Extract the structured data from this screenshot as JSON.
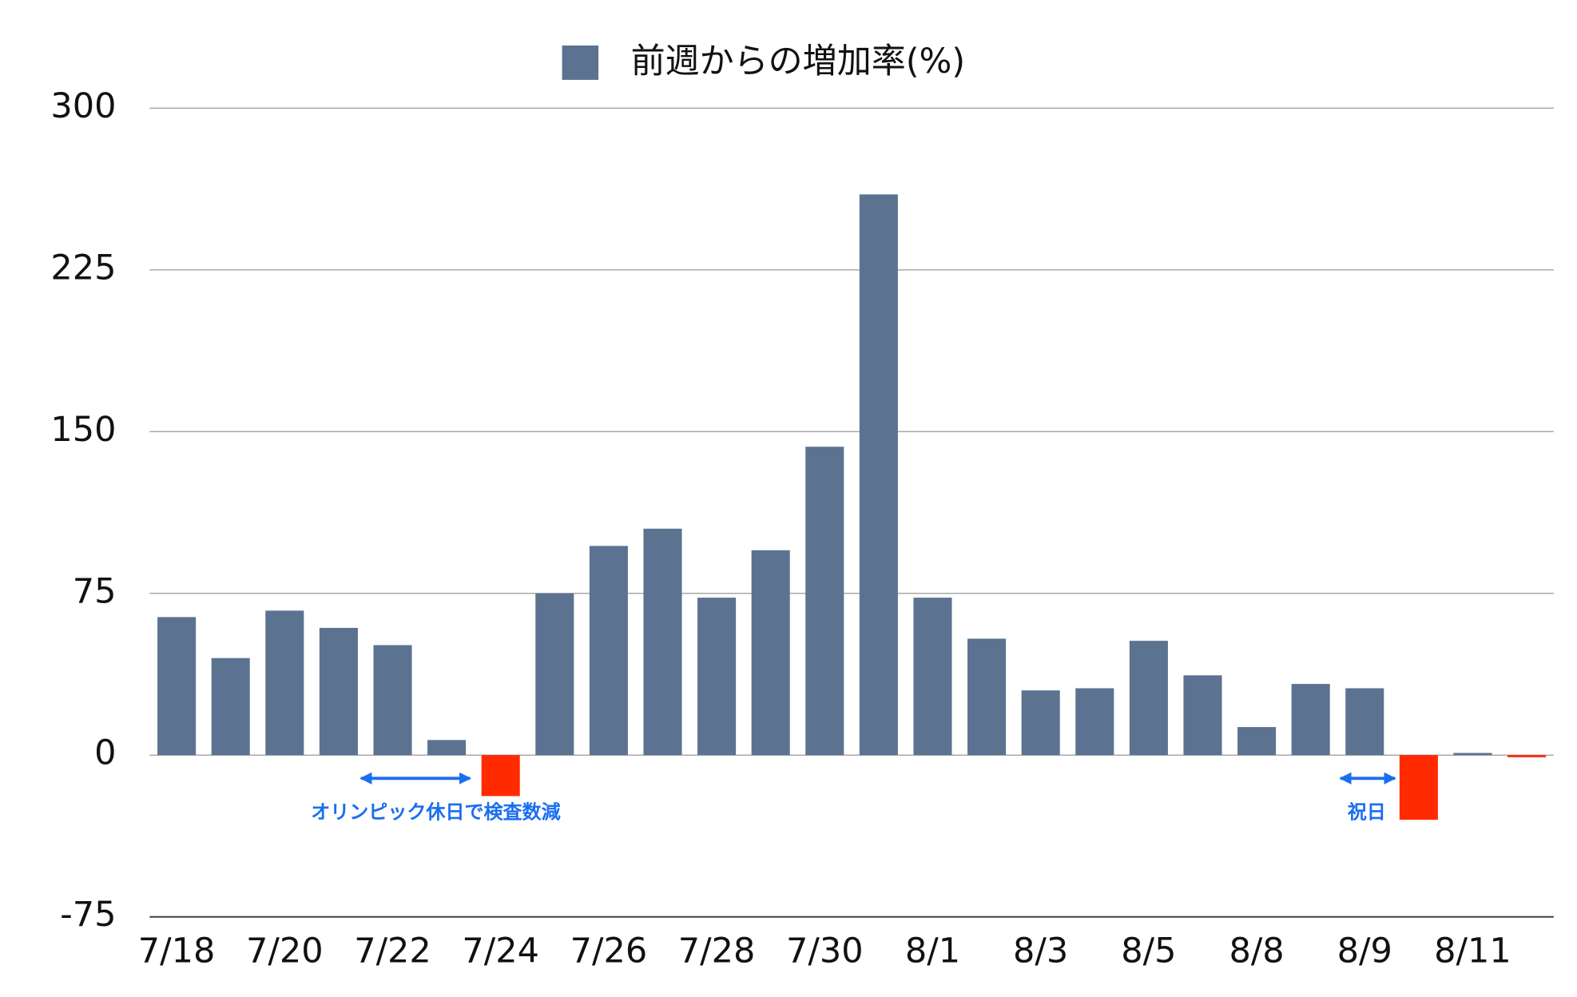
{
  "chart_data": {
    "type": "bar",
    "legend_label": "前週からの増加率(%)",
    "categories": [
      "7/18",
      null,
      "7/20",
      null,
      "7/22",
      null,
      "7/24",
      null,
      "7/26",
      null,
      "7/28",
      null,
      "7/30",
      null,
      "8/1",
      null,
      "8/3",
      null,
      "8/5",
      null,
      "8/8",
      null,
      "8/9",
      null,
      "8/11",
      null
    ],
    "values": [
      64,
      45,
      67,
      59,
      51,
      7,
      -19,
      75,
      97,
      105,
      73,
      95,
      143,
      260,
      73,
      54,
      30,
      31,
      53,
      37,
      13,
      33,
      31,
      -30,
      1,
      -1
    ],
    "color": "#5b7391",
    "negative_color": "#ff2a00",
    "ylim": [
      -75,
      300
    ],
    "yticks": [
      -75,
      0,
      75,
      150,
      225,
      300
    ],
    "grid": true,
    "annotations": [
      "オリンピック休日で検査数減",
      "祝日"
    ]
  }
}
